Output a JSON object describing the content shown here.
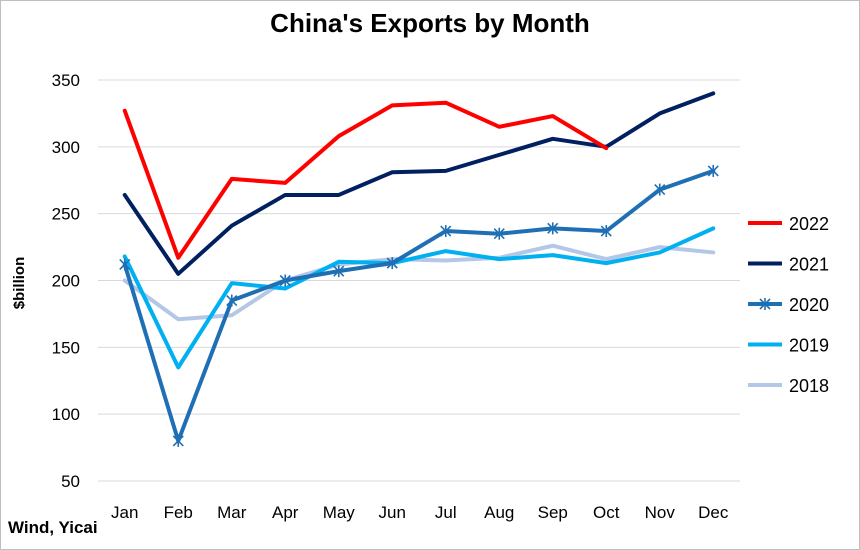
{
  "chart_data": {
    "type": "line",
    "title": "China's Exports by Month",
    "ylabel": "$billion",
    "xlabel": "",
    "source": "Wind, Yicai",
    "categories": [
      "Jan",
      "Feb",
      "Mar",
      "Apr",
      "May",
      "Jun",
      "Jul",
      "Aug",
      "Sep",
      "Oct",
      "Nov",
      "Dec"
    ],
    "ylim": [
      50,
      350
    ],
    "yticks": [
      50,
      100,
      150,
      200,
      250,
      300,
      350
    ],
    "grid": true,
    "legend": "right",
    "series": [
      {
        "name": "2022",
        "color": "#ff0000",
        "marker": "none",
        "values": [
          327,
          217,
          276,
          273,
          308,
          331,
          333,
          315,
          323,
          299,
          null,
          null
        ]
      },
      {
        "name": "2021",
        "color": "#002060",
        "marker": "none",
        "values": [
          264,
          205,
          241,
          264,
          264,
          281,
          282,
          294,
          306,
          300,
          325,
          340
        ]
      },
      {
        "name": "2020",
        "color": "#1f6fb4",
        "marker": "star",
        "values": [
          212,
          80,
          185,
          200,
          207,
          213,
          237,
          235,
          239,
          237,
          268,
          282
        ]
      },
      {
        "name": "2019",
        "color": "#00b0f0",
        "marker": "none",
        "values": [
          218,
          135,
          198,
          194,
          214,
          213,
          222,
          216,
          219,
          213,
          221,
          239
        ]
      },
      {
        "name": "2018",
        "color": "#b4c7e7",
        "marker": "none",
        "values": [
          200,
          171,
          174,
          200,
          212,
          216,
          215,
          217,
          226,
          216,
          225,
          221
        ]
      }
    ]
  }
}
